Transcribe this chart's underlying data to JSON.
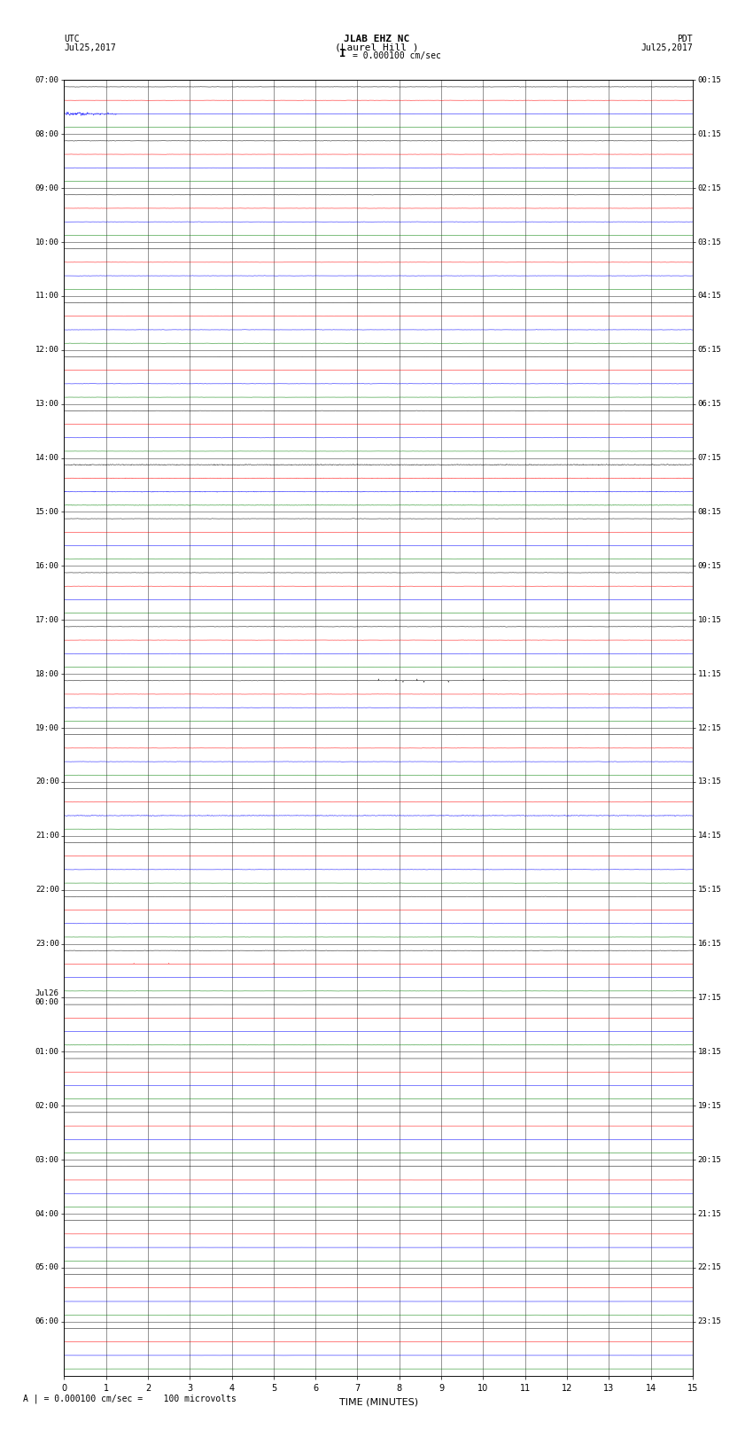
{
  "title_line1": "JLAB EHZ NC",
  "title_line2": "(Laurel Hill )",
  "scale_text": "I = 0.000100 cm/sec",
  "utc_label": "UTC",
  "utc_date": "Jul25,2017",
  "pdt_label": "PDT",
  "pdt_date": "Jul25,2017",
  "xlabel": "TIME (MINUTES)",
  "footer_text": "A | = 0.000100 cm/sec =    100 microvolts",
  "background_color": "#ffffff",
  "grid_color": "#555555",
  "trace_colors": [
    "#000000",
    "#ff0000",
    "#0000ff",
    "#008000"
  ],
  "left_times": [
    "07:00",
    "08:00",
    "09:00",
    "10:00",
    "11:00",
    "12:00",
    "13:00",
    "14:00",
    "15:00",
    "16:00",
    "17:00",
    "18:00",
    "19:00",
    "20:00",
    "21:00",
    "22:00",
    "23:00",
    "Jul26\n00:00",
    "01:00",
    "02:00",
    "03:00",
    "04:00",
    "05:00",
    "06:00"
  ],
  "right_times": [
    "00:15",
    "01:15",
    "02:15",
    "03:15",
    "04:15",
    "05:15",
    "06:15",
    "07:15",
    "08:15",
    "09:15",
    "10:15",
    "11:15",
    "12:15",
    "13:15",
    "14:15",
    "15:15",
    "16:15",
    "17:15",
    "18:15",
    "19:15",
    "20:15",
    "21:15",
    "22:15",
    "23:15"
  ],
  "n_rows": 24,
  "n_traces_per_row": 4,
  "minutes_per_row": 15,
  "x_ticks": [
    0,
    1,
    2,
    3,
    4,
    5,
    6,
    7,
    8,
    9,
    10,
    11,
    12,
    13,
    14,
    15
  ],
  "noise_scales": [
    0.018,
    0.012,
    0.016,
    0.01
  ],
  "active_rows": 17,
  "quiet_scale": 0.003
}
